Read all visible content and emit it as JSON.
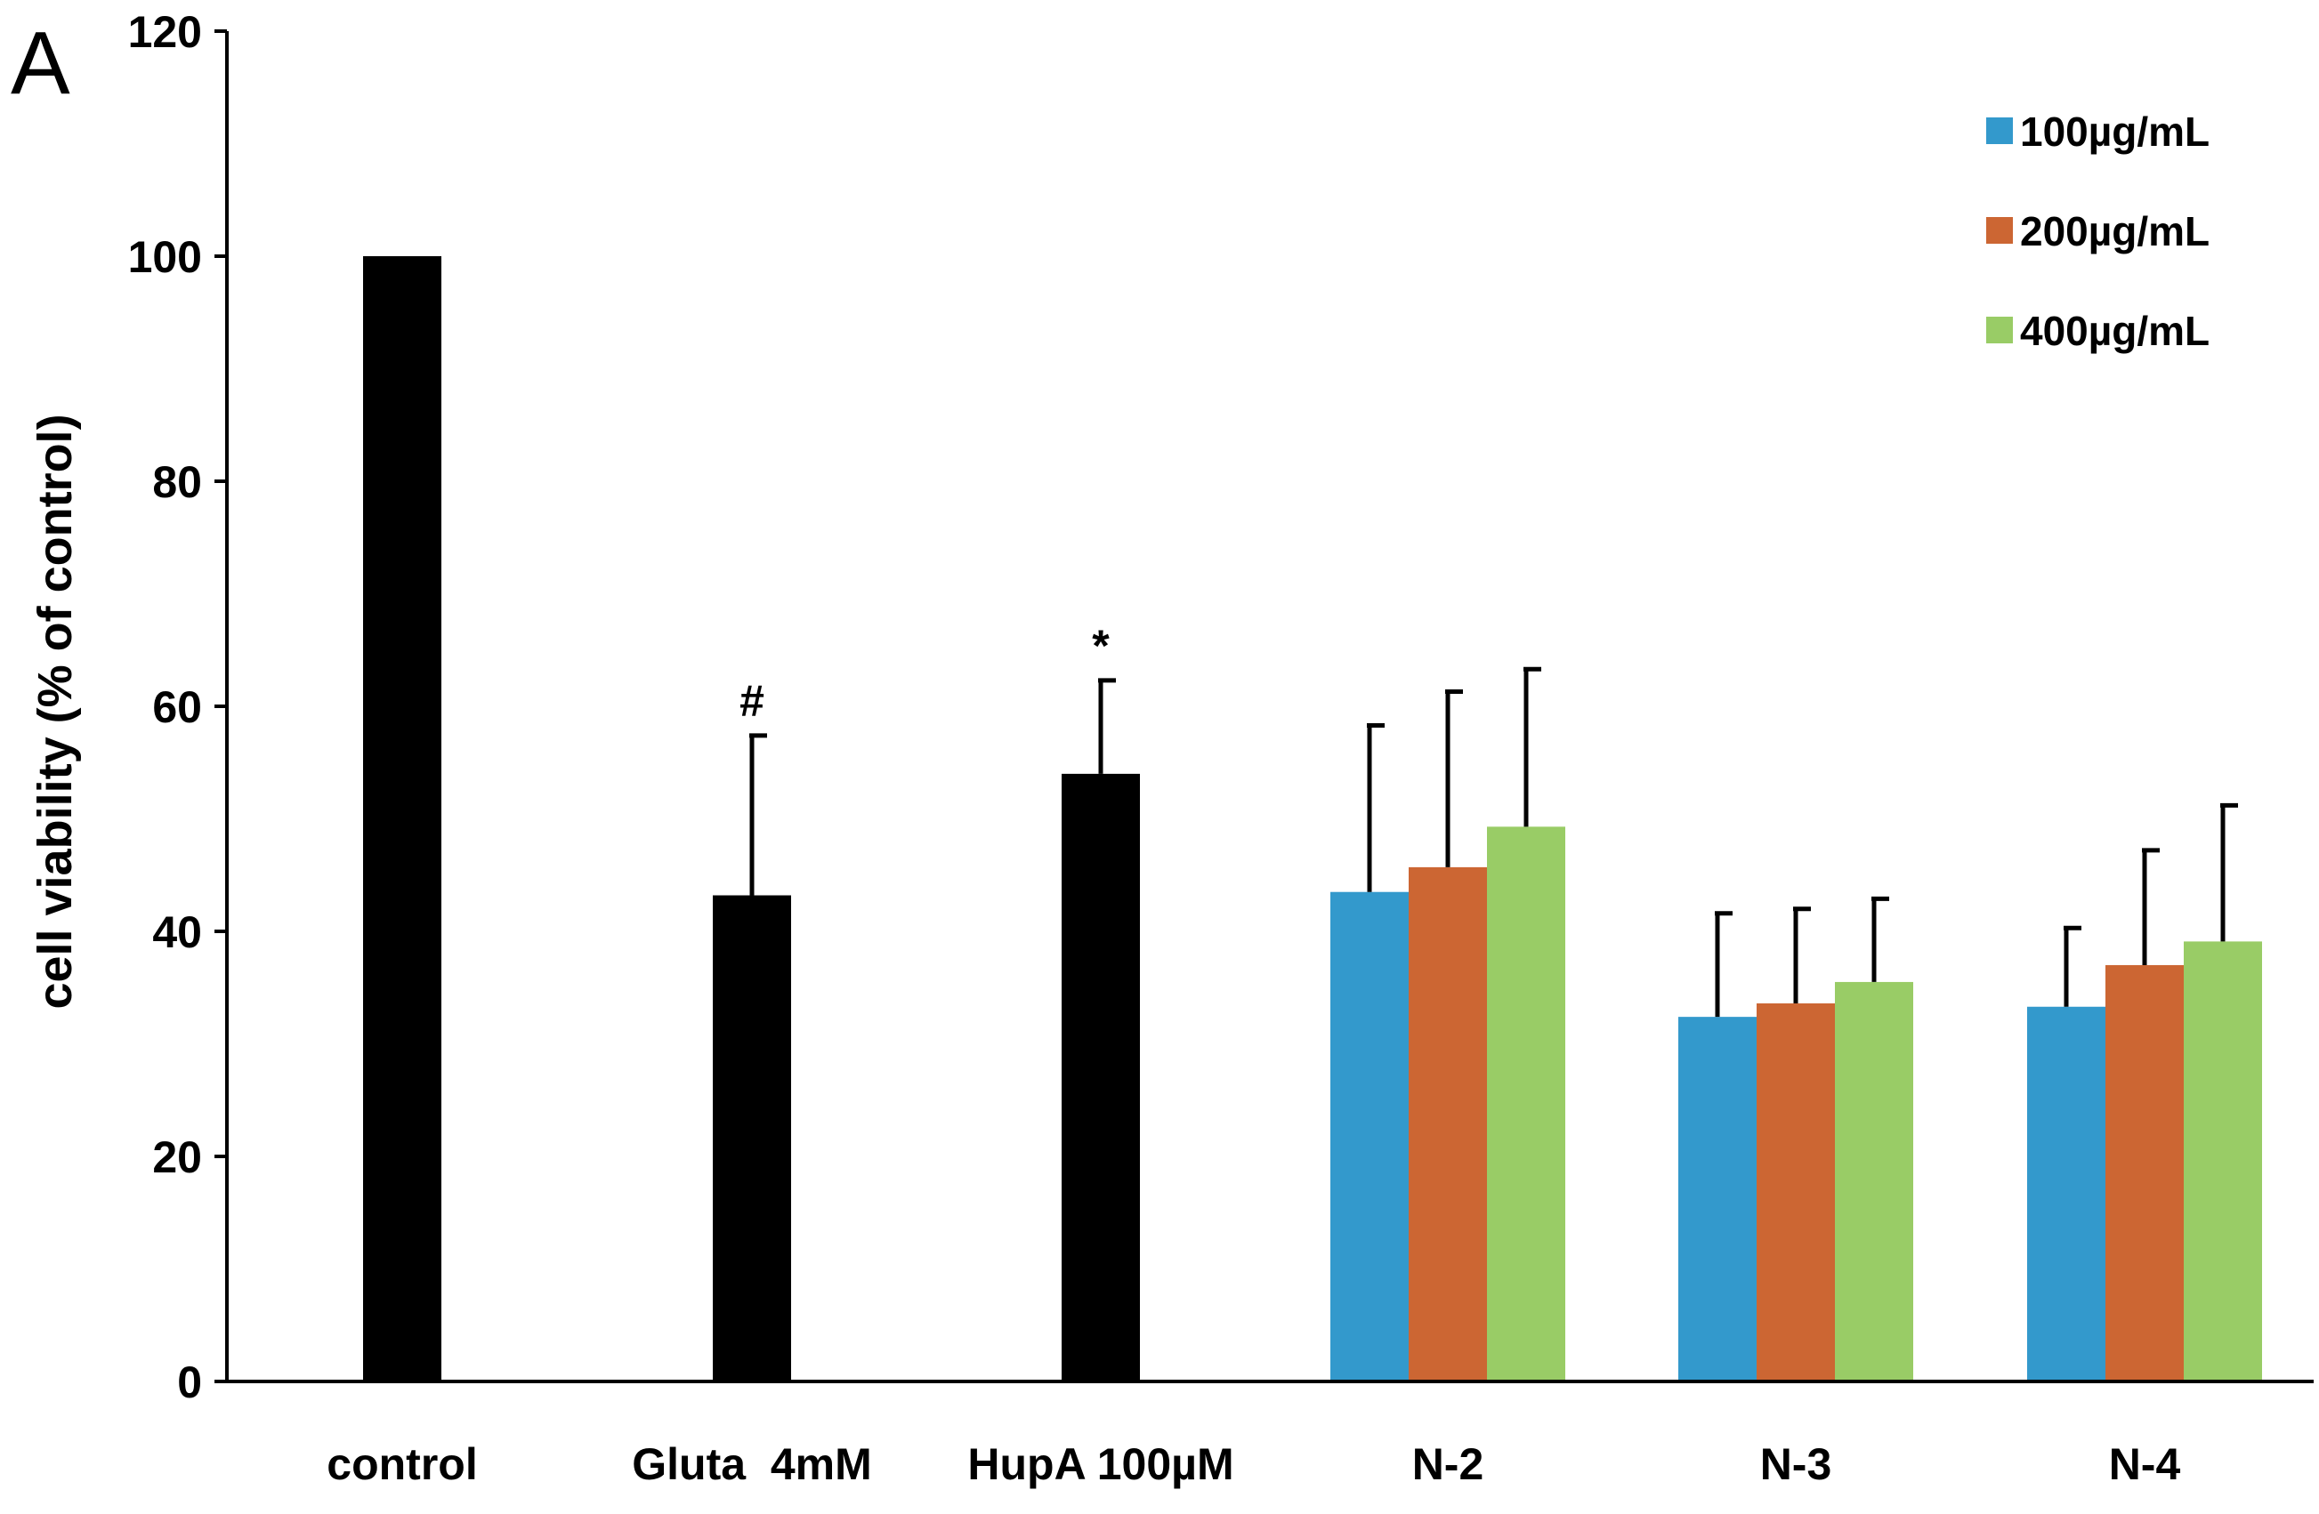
{
  "chart_data": {
    "type": "bar",
    "panel_label": "A",
    "title": "",
    "xlabel": "",
    "ylabel": "cell viability (% of control)",
    "ylim": [
      0,
      120
    ],
    "yticks": [
      0,
      20,
      40,
      60,
      80,
      100,
      120
    ],
    "grid": false,
    "legend_position": "top-right",
    "colors": {
      "control": "#000000",
      "100µg/mL": "#3399cc",
      "200µg/mL": "#cc6633",
      "400µg/mL": "#99cc66"
    },
    "legend": [
      {
        "name": "100µg/mL",
        "color": "#3399cc"
      },
      {
        "name": "200µg/mL",
        "color": "#cc6633"
      },
      {
        "name": "400µg/mL",
        "color": "#99cc66"
      }
    ],
    "groups": [
      {
        "label": "control",
        "bars": [
          {
            "series": "control",
            "value": 100,
            "error": 0
          }
        ]
      },
      {
        "label": "Gluta  4mM",
        "bars": [
          {
            "series": "control",
            "value": 43.2,
            "error": 14.2,
            "annotation": "#"
          }
        ]
      },
      {
        "label": "HupA 100µM",
        "bars": [
          {
            "series": "control",
            "value": 54.0,
            "error": 8.3,
            "annotation": "*"
          }
        ]
      },
      {
        "label": "N-2",
        "bars": [
          {
            "series": "100µg/mL",
            "value": 43.5,
            "error": 14.8
          },
          {
            "series": "200µg/mL",
            "value": 45.7,
            "error": 15.6
          },
          {
            "series": "400µg/mL",
            "value": 49.3,
            "error": 14.0
          }
        ]
      },
      {
        "label": "N-3",
        "bars": [
          {
            "series": "100µg/mL",
            "value": 32.4,
            "error": 9.2
          },
          {
            "series": "200µg/mL",
            "value": 33.6,
            "error": 8.4
          },
          {
            "series": "400µg/mL",
            "value": 35.5,
            "error": 7.4
          }
        ]
      },
      {
        "label": "N-4",
        "bars": [
          {
            "series": "100µg/mL",
            "value": 33.3,
            "error": 7.0
          },
          {
            "series": "200µg/mL",
            "value": 37.0,
            "error": 10.2
          },
          {
            "series": "400µg/mL",
            "value": 39.1,
            "error": 12.1
          }
        ]
      }
    ]
  }
}
